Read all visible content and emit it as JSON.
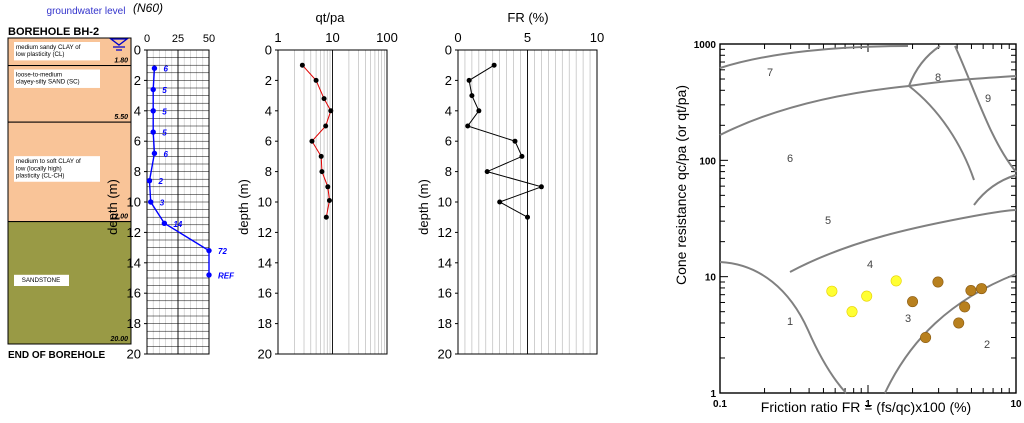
{
  "colors": {
    "clay": "#F9C498",
    "sand": "#F9C498",
    "sandstone": "#999A45",
    "blue": "#0000FF",
    "red": "#E00000",
    "zone_line": "#808080",
    "yellow": "#FFFF33",
    "brown": "#B8801E"
  },
  "borehole": {
    "title": "BOREHOLE BH-2",
    "end_label": "END OF BOREHOLE",
    "layers": [
      {
        "label": "medium sandy CLAY of low plasticity (CL)",
        "top": 0,
        "bottom": 1.8,
        "bottom_label": "1.80",
        "type": "clay"
      },
      {
        "label": "loose-to-medium clayey-silty SAND (SC)",
        "top": 1.8,
        "bottom": 5.5,
        "bottom_label": "5.50",
        "type": "sand"
      },
      {
        "label": "medium to soft CLAY of low (locally high) plasticity (CL-CH)",
        "top": 5.5,
        "bottom": 12.0,
        "bottom_label": "12.00",
        "type": "clay"
      },
      {
        "label": "SANDSTONE",
        "top": 12.0,
        "bottom": 20.0,
        "bottom_label": "20.00",
        "type": "sandstone"
      }
    ]
  },
  "chart_data": [
    {
      "type": "line",
      "title": "(N60)",
      "annotation": "groundwater level",
      "xlabel": "",
      "ylabel": "depth (m)",
      "x_ticks": [
        0,
        25,
        50
      ],
      "xlim": [
        0,
        50
      ],
      "y_ticks": [
        0,
        2,
        4,
        6,
        8,
        10,
        12,
        14,
        16,
        18,
        20
      ],
      "ylim": [
        0,
        20
      ],
      "grid": true,
      "series": [
        {
          "x": [
            6,
            5,
            5,
            5,
            6,
            2,
            3,
            14,
            50,
            50
          ],
          "y": [
            1.2,
            2.6,
            4.0,
            5.4,
            6.8,
            8.6,
            10.0,
            11.4,
            13.2,
            14.8
          ],
          "labels": [
            "6",
            "5",
            "5",
            "5",
            "6",
            "2",
            "3",
            "14",
            "72",
            "REF"
          ]
        }
      ]
    },
    {
      "type": "line",
      "title": "qt/pa",
      "xscale": "log",
      "xlim": [
        1,
        100
      ],
      "x_ticks": [
        1,
        10,
        100
      ],
      "ylabel": "depth (m)",
      "y_ticks": [
        0,
        2,
        4,
        6,
        8,
        10,
        12,
        14,
        16,
        18,
        20
      ],
      "ylim": [
        0,
        20
      ],
      "grid": true,
      "series": [
        {
          "x": [
            2.8,
            5.0,
            7.0,
            9.3,
            7.5,
            4.2,
            6.2,
            6.4,
            8.2,
            8.8,
            7.7
          ],
          "y": [
            1.0,
            2.0,
            3.2,
            4.0,
            5.0,
            6.0,
            7.0,
            8.0,
            9.0,
            9.9,
            11.0
          ]
        }
      ]
    },
    {
      "type": "line",
      "title": "FR (%)",
      "xlim": [
        0,
        10
      ],
      "x_ticks": [
        0,
        5,
        10
      ],
      "ylabel": "depth (m)",
      "y_ticks": [
        0,
        2,
        4,
        6,
        8,
        10,
        12,
        14,
        16,
        18,
        20
      ],
      "ylim": [
        0,
        20
      ],
      "grid": true,
      "series": [
        {
          "x": [
            2.6,
            0.8,
            1.0,
            1.5,
            0.7,
            4.1,
            4.6,
            2.1,
            6.0,
            3.0,
            5.0
          ],
          "y": [
            1.0,
            2.0,
            3.0,
            4.0,
            5.0,
            6.0,
            7.0,
            8.0,
            9.0,
            10.0,
            11.0
          ]
        }
      ]
    },
    {
      "type": "scatter",
      "title": "",
      "xlabel": "Friction ratio FR = (fs/qc)x100 (%)",
      "ylabel": "Cone resistance qc/pa (or qt/pa)",
      "xscale": "log",
      "yscale": "log",
      "xlim": [
        0.1,
        10
      ],
      "ylim": [
        1,
        1000
      ],
      "x_ticks": [
        "0.1",
        "1",
        "10"
      ],
      "y_ticks": [
        "1",
        "10",
        "100",
        "1000"
      ],
      "zones": [
        "1",
        "2",
        "3",
        "4",
        "5",
        "6",
        "7",
        "8",
        "9"
      ],
      "series": [
        {
          "color": "yellow",
          "points": [
            [
              0.57,
              7.5
            ],
            [
              0.98,
              6.8
            ],
            [
              1.55,
              9.2
            ],
            [
              0.78,
              5.0
            ]
          ]
        },
        {
          "color": "brown",
          "points": [
            [
              2.97,
              9.0
            ],
            [
              4.96,
              7.6
            ],
            [
              5.85,
              7.9
            ],
            [
              2.0,
              6.1
            ],
            [
              4.5,
              5.5
            ],
            [
              4.1,
              4.0
            ],
            [
              2.45,
              3.0
            ]
          ]
        }
      ]
    }
  ]
}
